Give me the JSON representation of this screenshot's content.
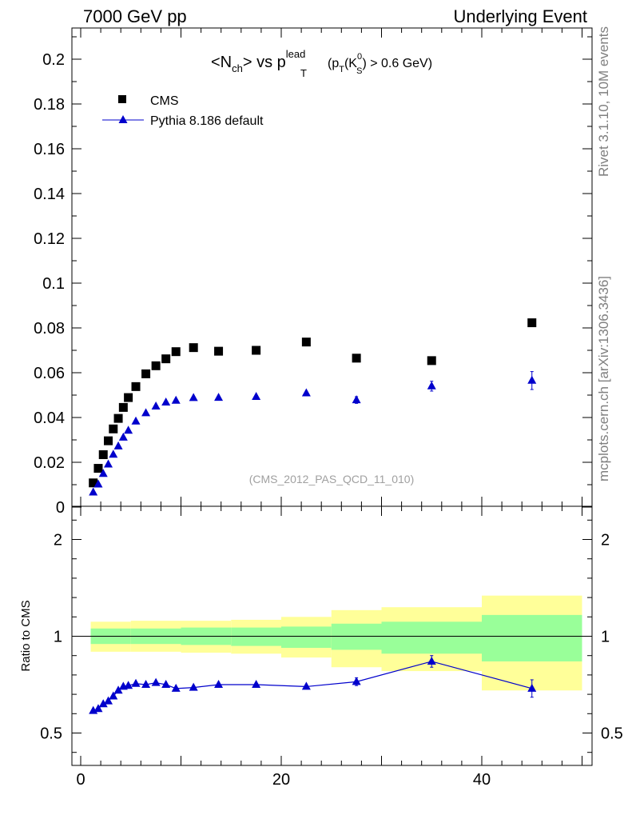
{
  "header": {
    "left": "7000 GeV pp",
    "right": "Underlying Event"
  },
  "title_parts": {
    "open": "<N",
    "ch": "ch",
    "mid": "> vs p",
    "T": "T",
    "lead": "lead",
    "cond_a": "(p",
    "cond_T": "T",
    "cond_b": "(K",
    "zero": "0",
    "S": "S",
    "cond_c": ") > 0.6 GeV)"
  },
  "watermark": "(CMS_2012_PAS_QCD_11_010)",
  "side_labels": {
    "upper": "Rivet 3.1.10,  10M events",
    "lower": "mcplots.cern.ch [arXiv:1306.3436]"
  },
  "colors": {
    "data": "#000000",
    "mc": "#0000cc",
    "band_outer": "#ffff99",
    "band_inner": "#99ff99"
  },
  "chart_data": [
    {
      "type": "scatter",
      "panel": "main",
      "title": "<Nch> vs pT lead (pT(KS0) > 0.6 GeV)",
      "xlabel": "",
      "ylabel": "",
      "xlim": [
        0,
        50
      ],
      "ylim": [
        0,
        0.21
      ],
      "yticks": [
        "0",
        "0.02",
        "0.04",
        "0.06",
        "0.08",
        "0.1",
        "0.12",
        "0.14",
        "0.16",
        "0.18",
        "0.2"
      ],
      "legend": [
        "CMS",
        "Pythia 8.186 default"
      ],
      "legend_position": "top-left",
      "series": [
        {
          "name": "CMS",
          "marker": "square",
          "x": [
            1.25,
            1.75,
            2.25,
            2.75,
            3.25,
            3.75,
            4.25,
            4.75,
            5.5,
            6.5,
            7.5,
            8.5,
            9.5,
            11.25,
            13.75,
            17.5,
            22.5,
            27.5,
            35,
            45
          ],
          "y": [
            0.0108,
            0.0173,
            0.0234,
            0.0296,
            0.0349,
            0.0396,
            0.0445,
            0.0489,
            0.0538,
            0.0595,
            0.0631,
            0.0662,
            0.0694,
            0.0712,
            0.0696,
            0.07,
            0.0737,
            0.0665,
            0.0654,
            0.0823
          ]
        },
        {
          "name": "Pythia 8.186 default",
          "marker": "triangle",
          "x": [
            1.25,
            1.75,
            2.25,
            2.75,
            3.25,
            3.75,
            4.25,
            4.75,
            5.5,
            6.5,
            7.5,
            8.5,
            9.5,
            11.25,
            13.75,
            17.5,
            22.5,
            27.5,
            35,
            45
          ],
          "y": [
            0.0066,
            0.0102,
            0.0149,
            0.0191,
            0.0235,
            0.0272,
            0.0311,
            0.0342,
            0.0383,
            0.042,
            0.045,
            0.0468,
            0.0476,
            0.0488,
            0.0489,
            0.0493,
            0.0509,
            0.0478,
            0.054,
            0.0565
          ],
          "yerr": [
            0,
            0,
            0,
            0,
            0,
            0,
            0,
            0,
            0,
            0,
            0,
            0,
            0,
            0,
            0,
            0,
            0,
            0.0015,
            0.0022,
            0.004
          ]
        }
      ]
    },
    {
      "type": "line",
      "panel": "ratio",
      "xlabel": "",
      "ylabel": "Ratio to CMS",
      "xlim": [
        0,
        50
      ],
      "ylim": [
        0.35,
        2.3
      ],
      "xticks": [
        "0",
        "20",
        "40"
      ],
      "yticks": [
        "0.5",
        "1",
        "2"
      ],
      "bands": [
        {
          "x": [
            1,
            5,
            10,
            15,
            20,
            25,
            30,
            40,
            50
          ],
          "outer_lo": [
            0.92,
            0.92,
            0.915,
            0.91,
            0.89,
            0.84,
            0.82,
            0.72,
            0.72
          ],
          "outer_hi": [
            1.15,
            1.16,
            1.16,
            1.17,
            1.2,
            1.27,
            1.3,
            1.42,
            1.42
          ],
          "inner_lo": [
            0.96,
            0.96,
            0.955,
            0.95,
            0.94,
            0.93,
            0.91,
            0.87,
            0.87
          ],
          "inner_hi": [
            1.08,
            1.08,
            1.09,
            1.09,
            1.1,
            1.13,
            1.15,
            1.22,
            1.22
          ]
        }
      ],
      "series": [
        {
          "name": "Pythia 8.186 default",
          "x": [
            1.25,
            1.75,
            2.25,
            2.75,
            3.25,
            3.75,
            4.25,
            4.75,
            5.5,
            6.5,
            7.5,
            8.5,
            9.5,
            11.25,
            13.75,
            17.5,
            22.5,
            27.5,
            35,
            45
          ],
          "y": [
            0.615,
            0.625,
            0.65,
            0.665,
            0.69,
            0.72,
            0.74,
            0.745,
            0.755,
            0.75,
            0.76,
            0.75,
            0.73,
            0.735,
            0.75,
            0.75,
            0.74,
            0.765,
            0.87,
            0.73
          ],
          "yerr": [
            0,
            0,
            0,
            0,
            0,
            0,
            0,
            0,
            0,
            0,
            0,
            0,
            0,
            0,
            0,
            0,
            0,
            0.02,
            0.03,
            0.045
          ]
        }
      ]
    }
  ]
}
